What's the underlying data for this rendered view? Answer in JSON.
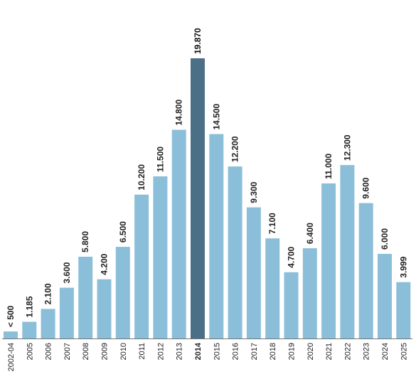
{
  "chart_data": {
    "type": "bar",
    "categories": [
      "2002-04",
      "2005",
      "2006",
      "2007",
      "2008",
      "2009",
      "2010",
      "2011",
      "2012",
      "2013",
      "2014",
      "2015",
      "2016",
      "2017",
      "2018",
      "2019",
      "2020",
      "2021",
      "2022",
      "2023",
      "2024",
      "2025"
    ],
    "values": [
      500,
      1185,
      2100,
      3600,
      5800,
      4200,
      6500,
      10200,
      11500,
      14800,
      19870,
      14500,
      12200,
      9300,
      7100,
      4700,
      6400,
      11000,
      12300,
      9600,
      6000,
      3999
    ],
    "data_labels": [
      "< 500",
      "1.185",
      "2.100",
      "3.600",
      "5.800",
      "4.200",
      "6.500",
      "10.200",
      "11.500",
      "14.800",
      "19.870",
      "14.500",
      "12.200",
      "9.300",
      "7.100",
      "4.700",
      "6.400",
      "11.000",
      "12.300",
      "9.600",
      "6.000",
      "3.999"
    ],
    "highlight_index": 10,
    "title": "",
    "xlabel": "",
    "ylabel": "",
    "ylim": [
      0,
      19870
    ],
    "grid": false,
    "colors": {
      "bar": "#8bbfd9",
      "highlight": "#4b6f86",
      "axis": "#777777"
    }
  }
}
